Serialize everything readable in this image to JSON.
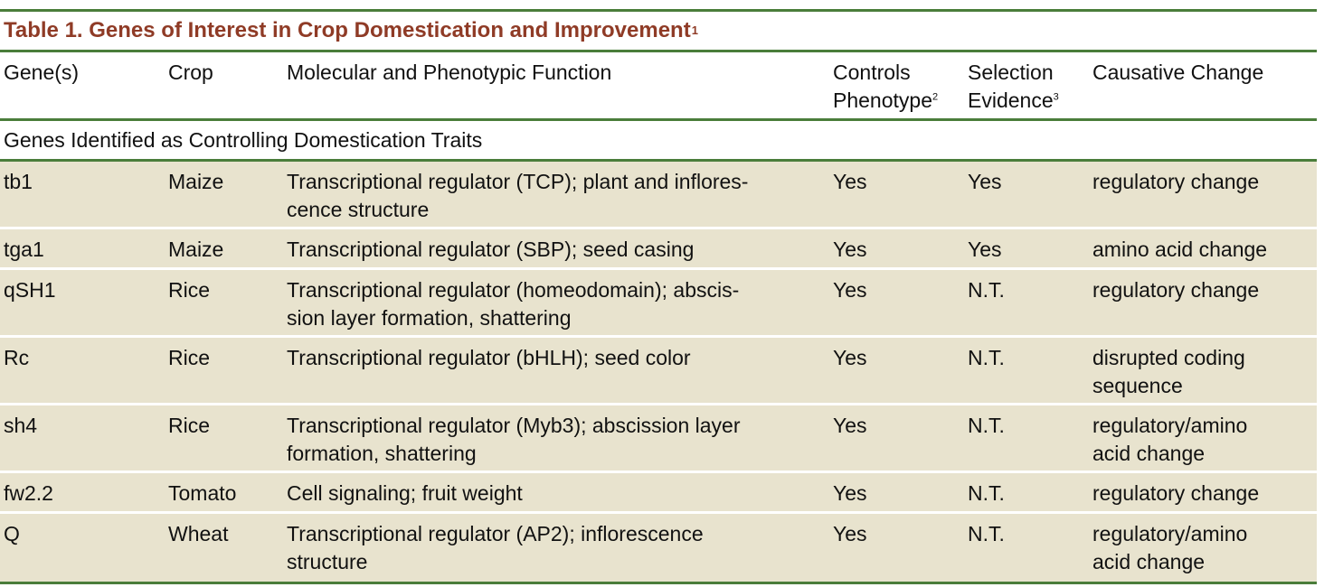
{
  "table": {
    "title": "Table 1. Genes of Interest in Crop Domestication and Improvement",
    "title_footnote": "1",
    "headers": {
      "gene": "Gene(s)",
      "crop": "Crop",
      "function": "Molecular and Phenotypic Function",
      "controls_line1": "Controls",
      "controls_line2": "Phenotype",
      "controls_footnote": "2",
      "selection_line1": "Selection",
      "selection_line2": "Evidence",
      "selection_footnote": "3",
      "change": "Causative Change"
    },
    "section_label": "Genes Identified as Controlling Domestication Traits",
    "rows": [
      {
        "gene": "tb1",
        "crop": "Maize",
        "function_l1": "Transcriptional regulator (TCP); plant and inflores-",
        "function_l2": "cence structure",
        "controls": "Yes",
        "selection": "Yes",
        "change_l1": "regulatory change",
        "change_l2": ""
      },
      {
        "gene": "tga1",
        "crop": "Maize",
        "function_l1": "Transcriptional regulator (SBP); seed casing",
        "function_l2": "",
        "controls": "Yes",
        "selection": "Yes",
        "change_l1": "amino acid change",
        "change_l2": ""
      },
      {
        "gene": "qSH1",
        "crop": "Rice",
        "function_l1": "Transcriptional regulator (homeodomain); abscis-",
        "function_l2": "sion layer formation, shattering",
        "controls": "Yes",
        "selection": "N.T.",
        "change_l1": "regulatory change",
        "change_l2": ""
      },
      {
        "gene": "Rc",
        "crop": "Rice",
        "function_l1": "Transcriptional regulator (bHLH); seed color",
        "function_l2": "",
        "controls": "Yes",
        "selection": "N.T.",
        "change_l1": "disrupted coding",
        "change_l2": "sequence"
      },
      {
        "gene": "sh4",
        "crop": "Rice",
        "function_l1": "Transcriptional regulator (Myb3); abscission layer",
        "function_l2": "formation, shattering",
        "controls": "Yes",
        "selection": "N.T.",
        "change_l1": "regulatory/amino",
        "change_l2": "acid change"
      },
      {
        "gene": "fw2.2",
        "crop": "Tomato",
        "function_l1": "Cell signaling; fruit weight",
        "function_l2": "",
        "controls": "Yes",
        "selection": "N.T.",
        "change_l1": "regulatory change",
        "change_l2": ""
      },
      {
        "gene": "Q",
        "crop": "Wheat",
        "function_l1": "Transcriptional regulator (AP2); inflorescence",
        "function_l2": "structure",
        "controls": "Yes",
        "selection": "N.T.",
        "change_l1": "regulatory/amino",
        "change_l2": "acid change"
      }
    ]
  }
}
